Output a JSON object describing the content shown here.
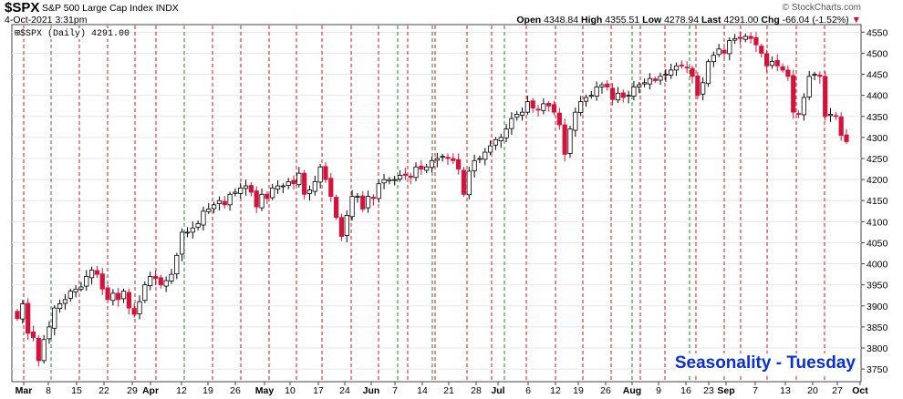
{
  "header": {
    "ticker": "$SPX",
    "name": "S&P 500 Large Cap Index INDX",
    "date": "4-Oct-2021 3:31pm",
    "open_label": "Open",
    "open": "4348.84",
    "high_label": "High",
    "high": "4355.51",
    "low_label": "Low",
    "low": "4278.94",
    "last_label": "Last",
    "last": "4291.00",
    "chg_label": "Chg",
    "chg": "-66.04 (-1.52%)",
    "legend": "$SPX (Daily) 4291.00",
    "credit": "© StockCharts.com"
  },
  "annotation": "Seasonality - Tuesday",
  "colors": {
    "up": "#ffffff",
    "down": "#d6123a",
    "tuesday_line": "#d61a1a",
    "monday_line": "#1a8a1a",
    "title_blue": "#0a2fd6"
  },
  "chart_data": {
    "type": "candlestick",
    "y_ticks": [
      3750,
      3800,
      3850,
      3900,
      3950,
      4000,
      4050,
      4100,
      4150,
      4200,
      4250,
      4300,
      4350,
      4400,
      4450,
      4500,
      4550
    ],
    "ylim": [
      3720,
      4568
    ],
    "x_tick_labels": [
      {
        "label": "Mar",
        "bold": true
      },
      {
        "label": "8",
        "bold": false
      },
      {
        "label": "15",
        "bold": false
      },
      {
        "label": "22",
        "bold": false
      },
      {
        "label": "29",
        "bold": false
      },
      {
        "label": "Apr",
        "bold": true
      },
      {
        "label": "12",
        "bold": false
      },
      {
        "label": "19",
        "bold": false
      },
      {
        "label": "26",
        "bold": false
      },
      {
        "label": "May",
        "bold": true
      },
      {
        "label": "10",
        "bold": false
      },
      {
        "label": "17",
        "bold": false
      },
      {
        "label": "24",
        "bold": false
      },
      {
        "label": "Jun",
        "bold": true
      },
      {
        "label": "7",
        "bold": false
      },
      {
        "label": "14",
        "bold": false
      },
      {
        "label": "21",
        "bold": false
      },
      {
        "label": "28",
        "bold": false
      },
      {
        "label": "Jul",
        "bold": true
      },
      {
        "label": "6",
        "bold": false
      },
      {
        "label": "12",
        "bold": false
      },
      {
        "label": "19",
        "bold": false
      },
      {
        "label": "26",
        "bold": false
      },
      {
        "label": "Aug",
        "bold": true
      },
      {
        "label": "9",
        "bold": false
      },
      {
        "label": "16",
        "bold": false
      },
      {
        "label": "23",
        "bold": false
      },
      {
        "label": "Sep",
        "bold": true
      },
      {
        "label": "7",
        "bold": false
      },
      {
        "label": "13",
        "bold": false
      },
      {
        "label": "20",
        "bold": false
      },
      {
        "label": "27",
        "bold": false
      },
      {
        "label": "Oct",
        "bold": true
      }
    ],
    "vertical_markers": "dashed red line on each Tuesday, dashed green line on each Monday",
    "closes": [
      3870,
      3905,
      3835,
      3825,
      3770,
      3820,
      3850,
      3895,
      3905,
      3915,
      3935,
      3940,
      3945,
      3970,
      3985,
      3975,
      3940,
      3915,
      3930,
      3915,
      3935,
      3895,
      3880,
      3910,
      3950,
      3970,
      3965,
      3950,
      3960,
      3975,
      4020,
      4075,
      4075,
      4085,
      4095,
      4125,
      4130,
      4140,
      4150,
      4140,
      4165,
      4170,
      4180,
      4185,
      4170,
      4135,
      4165,
      4155,
      4180,
      4185,
      4185,
      4195,
      4190,
      4215,
      4165,
      4175,
      4195,
      4230,
      4200,
      4160,
      4110,
      4065,
      4115,
      4160,
      4160,
      4130,
      4160,
      4155,
      4190,
      4200,
      4200,
      4200,
      4210,
      4210,
      4205,
      4230,
      4225,
      4230,
      4245,
      4250,
      4255,
      4250,
      4245,
      4225,
      4165,
      4220,
      4245,
      4250,
      4265,
      4280,
      4295,
      4300,
      4320,
      4345,
      4355,
      4360,
      4385,
      4370,
      4365,
      4380,
      4375,
      4360,
      4330,
      4260,
      4320,
      4360,
      4385,
      4395,
      4400,
      4420,
      4425,
      4420,
      4390,
      4405,
      4395,
      4400,
      4420,
      4425,
      4430,
      4440,
      4435,
      4445,
      4450,
      4460,
      4470,
      4470,
      4465,
      4445,
      4400,
      4430,
      4480,
      4495,
      4510,
      4500,
      4530,
      4535,
      4535,
      4540,
      4535,
      4520,
      4500,
      4470,
      4480,
      4470,
      4460,
      4445,
      4360,
      4355,
      4395,
      4445,
      4450,
      4445,
      4350,
      4355,
      4350,
      4305,
      4290
    ]
  }
}
